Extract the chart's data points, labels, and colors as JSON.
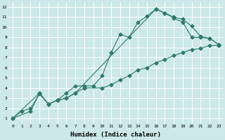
{
  "xlabel": "Humidex (Indice chaleur)",
  "bg_color": "#cce8e8",
  "grid_color": "#ffffff",
  "line_color": "#2d7a6a",
  "xlim": [
    -0.5,
    23.5
  ],
  "ylim": [
    0.5,
    12.5
  ],
  "xticks": [
    0,
    1,
    2,
    3,
    4,
    5,
    6,
    7,
    8,
    9,
    10,
    11,
    12,
    13,
    14,
    15,
    16,
    17,
    18,
    19,
    20,
    21,
    22,
    23
  ],
  "yticks": [
    1,
    2,
    3,
    4,
    5,
    6,
    7,
    8,
    9,
    10,
    11,
    12
  ],
  "line1_x": [
    0,
    1,
    2,
    3,
    4,
    5,
    6,
    7,
    8,
    9,
    10,
    11,
    12,
    13,
    14,
    15,
    16,
    17,
    18,
    19,
    20,
    21,
    22,
    23
  ],
  "line1_y": [
    1,
    1.7,
    2.0,
    3.4,
    2.4,
    2.8,
    3.5,
    4.2,
    4.2,
    4.2,
    5.2,
    7.5,
    9.3,
    9.0,
    10.5,
    11.1,
    11.8,
    11.4,
    10.9,
    10.5,
    9.0,
    9.0,
    8.9,
    8.3
  ],
  "line2_x": [
    0,
    2,
    3,
    4,
    5,
    6,
    7,
    8,
    10,
    11,
    12,
    13,
    14,
    15,
    16,
    17,
    18,
    19,
    20,
    21,
    22,
    23
  ],
  "line2_y": [
    1,
    1.7,
    3.5,
    2.4,
    2.8,
    3.0,
    3.5,
    4.0,
    4.0,
    4.3,
    4.8,
    5.2,
    5.8,
    6.0,
    6.5,
    6.8,
    7.2,
    7.5,
    7.8,
    7.9,
    8.2,
    8.2
  ],
  "line3_x": [
    0,
    3,
    4,
    5,
    6,
    7,
    16,
    17,
    18,
    19,
    20,
    21,
    22,
    23
  ],
  "line3_y": [
    1,
    3.5,
    2.4,
    2.8,
    3.0,
    3.5,
    11.8,
    11.4,
    11.0,
    10.8,
    10.1,
    9.1,
    8.9,
    8.3
  ]
}
